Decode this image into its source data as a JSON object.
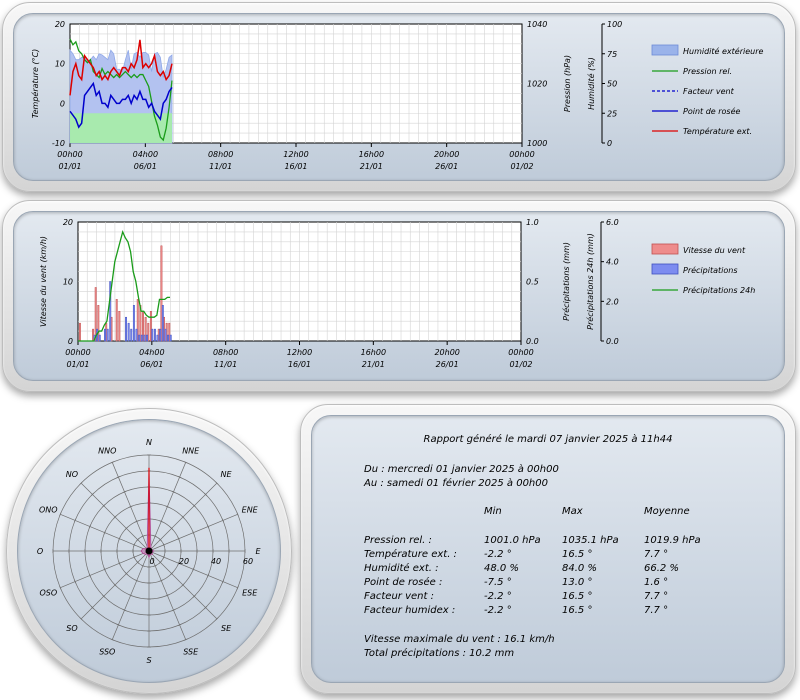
{
  "chart_data": [
    {
      "type": "line",
      "x_ticks": [
        "00h00\n01/01",
        "04h00\n06/01",
        "08h00\n11/01",
        "12h00\n16/01",
        "16h00\n21/01",
        "20h00\n26/01",
        "00h00\n01/02"
      ],
      "y_left": {
        "label": "Température (°C)",
        "range": [
          -10,
          20
        ],
        "ticks": [
          "20",
          "10",
          "0",
          "-10"
        ]
      },
      "y_right1": {
        "label": "Pression (hPa)",
        "range": [
          1000,
          1040
        ],
        "ticks": [
          "1040",
          "1020",
          "1000"
        ]
      },
      "y_right2": {
        "label": "Humidité (%)",
        "range": [
          0,
          100
        ],
        "ticks": [
          "100",
          "75",
          "50",
          "25",
          "0"
        ]
      },
      "legend": [
        "Humidité extérieure",
        "Pression rel.",
        "Facteur vent",
        "Point de rosée",
        "Température ext."
      ],
      "legend_position": "right",
      "grid": true,
      "colors": {
        "humidity": "#8fa8e8",
        "humidity_low": "#8ee88e",
        "pressure": "#1a9c1a",
        "wind_factor": "#0000cc",
        "dew": "#0000cc",
        "temp": "#dd0000"
      },
      "series": [
        {
          "name": "Humidité extérieure",
          "axis": "humidity",
          "values": [
            78,
            75,
            70,
            70,
            72,
            72,
            68,
            70,
            73,
            70,
            75,
            74,
            72,
            70,
            78,
            75,
            62,
            62,
            60,
            70,
            78,
            62,
            75,
            76,
            72,
            76,
            76,
            74,
            60,
            75,
            76,
            72,
            55,
            62,
            72,
            74
          ]
        },
        {
          "name": "Pression rel.",
          "axis": "pressure",
          "values": [
            1035,
            1033,
            1034,
            1031,
            1030,
            1028,
            1027,
            1028,
            1024,
            1023,
            1022,
            1025,
            1023,
            1024,
            1023,
            1022,
            1023,
            1022,
            1023,
            1024,
            1023,
            1022,
            1023,
            1022,
            1023,
            1023,
            1021,
            1019,
            1014,
            1009,
            1006,
            1002,
            1001,
            1005,
            1012,
            1021
          ]
        },
        {
          "name": "Point de rosée",
          "axis": "temp",
          "values": [
            -2,
            -3,
            -4,
            -6,
            -5,
            2,
            3,
            4,
            5,
            2,
            3,
            0,
            0,
            -1,
            2,
            1,
            0,
            0,
            1,
            1,
            2,
            0,
            2,
            1,
            3,
            1,
            1,
            -1,
            0,
            -2,
            -3,
            -4,
            0,
            1,
            3,
            4
          ]
        },
        {
          "name": "Température ext.",
          "axis": "temp",
          "values": [
            2,
            8,
            10,
            7,
            6,
            12,
            11,
            10,
            9,
            7,
            8,
            6,
            7,
            6,
            8,
            9,
            8,
            7,
            9,
            9,
            8,
            10,
            9,
            11,
            16,
            9,
            10,
            9,
            10,
            12,
            8,
            7,
            8,
            6,
            7,
            10
          ]
        }
      ]
    },
    {
      "type": "bar",
      "x_ticks": [
        "00h00\n01/01",
        "04h00\n06/01",
        "08h00\n11/01",
        "12h00\n16/01",
        "16h00\n21/01",
        "20h00\n26/01",
        "00h00\n01/02"
      ],
      "y_left": {
        "label": "Vitesse du vent (km/h)",
        "range": [
          0,
          20
        ],
        "ticks": [
          "20",
          "10",
          "0"
        ]
      },
      "y_right1": {
        "label": "Précipitations (mm)",
        "range": [
          0,
          1
        ],
        "ticks": [
          "1.0",
          "0.5",
          "0.0"
        ]
      },
      "y_right2": {
        "label": "Précipitations 24h (mm)",
        "range": [
          0,
          6
        ],
        "ticks": [
          "6.0",
          "4.0",
          "2.0",
          "0.0"
        ]
      },
      "legend": [
        "Vitesse du vent",
        "Précipitations",
        "Précipitations 24h"
      ],
      "legend_position": "right",
      "grid": true,
      "colors": {
        "wind": "#e88a8a",
        "precip": "#6a7be8",
        "precip24": "#1a9c1a"
      },
      "series": [
        {
          "name": "Vitesse du vent",
          "values": [
            0,
            3,
            0,
            0,
            0,
            0,
            2,
            9,
            6,
            0,
            0,
            3,
            0,
            4,
            0,
            7,
            5,
            0,
            0,
            0,
            0,
            0,
            0,
            7,
            6,
            5,
            4,
            3,
            5,
            0,
            0,
            2,
            16,
            4,
            3,
            3
          ]
        },
        {
          "name": "Précipitations",
          "values": [
            0,
            0,
            0,
            0,
            0,
            0,
            0.05,
            0.1,
            0.05,
            0,
            0.1,
            0.1,
            0.5,
            0,
            0,
            0,
            0,
            0,
            0.2,
            0.15,
            0.1,
            0.3,
            0.1,
            0.05,
            0.05,
            0.05,
            0.05,
            0,
            0.1,
            0.1,
            0.05,
            0.1,
            0.3,
            0.1,
            0.05,
            0.05
          ]
        },
        {
          "name": "Précipitations 24h",
          "values": [
            0,
            0,
            0,
            0,
            0,
            0,
            0,
            0.3,
            0.5,
            0.5,
            0.8,
            1,
            2,
            3,
            4,
            4.5,
            5,
            5.5,
            5.2,
            5,
            4.5,
            3.5,
            3,
            2.2,
            1.5,
            1.5,
            1.3,
            1.2,
            1.2,
            1.2,
            1.3,
            2.1,
            2.1,
            2.1,
            2.2,
            2.2
          ]
        }
      ]
    },
    {
      "type": "polar",
      "directions": [
        "N",
        "NNE",
        "NE",
        "ENE",
        "E",
        "ESE",
        "SE",
        "SSE",
        "S",
        "SSO",
        "SO",
        "OSO",
        "O",
        "ONO",
        "NO",
        "NNO"
      ],
      "radial_ticks": [
        "0",
        "20",
        "40",
        "60"
      ],
      "radial_max": 60,
      "frequencies": [
        52,
        3,
        2,
        2,
        3,
        2,
        3,
        2,
        4,
        2,
        3,
        4,
        5,
        4,
        2,
        3
      ]
    }
  ],
  "report": {
    "title": "Rapport généré le mardi 07 janvier 2025 à 11h44",
    "from": "Du : mercredi 01 janvier 2025 à 00h00",
    "to": "Au : samedi 01 février 2025 à 00h00",
    "headers": [
      "Min",
      "Max",
      "Moyenne"
    ],
    "rows": [
      {
        "label": "Pression rel. :",
        "min": "1001.0 hPa",
        "max": "1035.1 hPa",
        "avg": "1019.9 hPa"
      },
      {
        "label": "Température ext. :",
        "min": "-2.2 °",
        "max": "16.5 °",
        "avg": "7.7 °"
      },
      {
        "label": "Humidité ext. :",
        "min": "48.0 %",
        "max": "84.0 %",
        "avg": "66.2 %"
      },
      {
        "label": "Point de rosée :",
        "min": "-7.5 °",
        "max": "13.0 °",
        "avg": "1.6 °"
      },
      {
        "label": "Facteur vent :",
        "min": "-2.2 °",
        "max": "16.5 °",
        "avg": "7.7 °"
      },
      {
        "label": "Facteur humidex :",
        "min": "-2.2 °",
        "max": "16.5 °",
        "avg": "7.7 °"
      }
    ],
    "max_wind": "Vitesse maximale du vent : 16.1 km/h",
    "total_precip": "Total précipitations : 10.2 mm"
  }
}
